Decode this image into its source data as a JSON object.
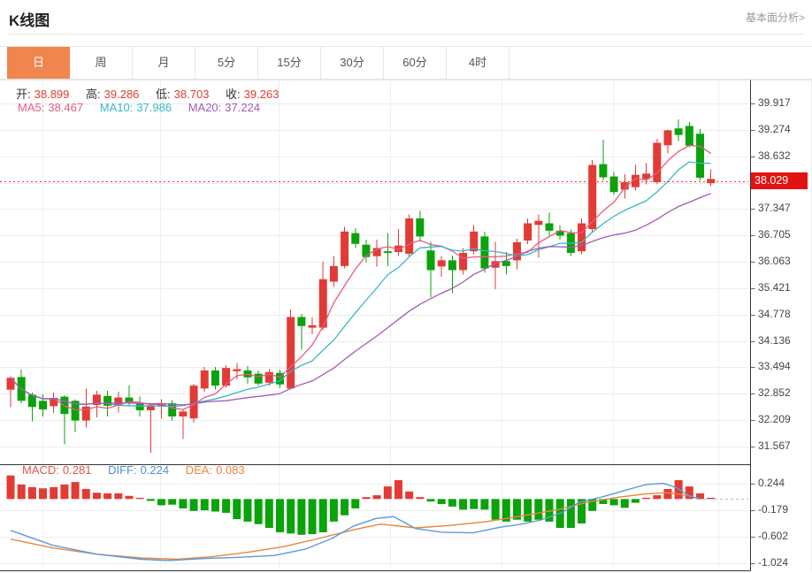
{
  "header": {
    "title": "K线图",
    "link": "基本面分析>"
  },
  "tabs": {
    "active_index": 0,
    "items": [
      {
        "label": "日",
        "name": "tab-day"
      },
      {
        "label": "周",
        "name": "tab-week"
      },
      {
        "label": "月",
        "name": "tab-month"
      },
      {
        "label": "5分",
        "name": "tab-5min"
      },
      {
        "label": "15分",
        "name": "tab-15min"
      },
      {
        "label": "30分",
        "name": "tab-30min"
      },
      {
        "label": "60分",
        "name": "tab-60min"
      },
      {
        "label": "4时",
        "name": "tab-4hour"
      }
    ]
  },
  "ohlc_legend": {
    "open_label": "开:",
    "open": "38.899",
    "high_label": "高:",
    "high": "39.286",
    "low_label": "低:",
    "low": "38.703",
    "close_label": "收:",
    "close": "39.263"
  },
  "ma_legend": {
    "ma5_label": "MA5:",
    "ma5": "38.467",
    "ma10_label": "MA10:",
    "ma10": "37.986",
    "ma20_label": "MA20:",
    "ma20": "37.224"
  },
  "macd_legend": {
    "macd_label": "MACD:",
    "macd": "0.281",
    "diff_label": "DIFF:",
    "diff": "0.224",
    "dea_label": "DEA:",
    "dea": "0.083"
  },
  "price_marker": {
    "value": "38.029"
  },
  "colors": {
    "up": "#e23b35",
    "down": "#0aa30a",
    "ma5": "#e85a82",
    "ma10": "#39b6c9",
    "ma20": "#a55ab4",
    "diff": "#5a9bd8",
    "dea": "#e8863c",
    "macd_text": "#e2544d",
    "diff_text": "#4a90d8",
    "dea_text": "#e8863c",
    "value_red": "#e23b35",
    "badge": "#e31212",
    "price_line": "#ff2d2d",
    "active_tab": "#f0854d",
    "zero_dash": "#9cc6e6"
  },
  "chart_data": {
    "type": "candlestick",
    "main": {
      "y_ticks": [
        39.917,
        39.274,
        38.632,
        37.99,
        37.347,
        36.705,
        36.063,
        35.421,
        34.778,
        34.136,
        33.494,
        32.852,
        32.209,
        31.567
      ],
      "current_price": 38.029,
      "ma_periods": [
        5,
        10,
        20
      ],
      "candles": [
        [
          32.95,
          33.28,
          32.52,
          33.24
        ],
        [
          33.26,
          33.44,
          32.62,
          32.68
        ],
        [
          32.83,
          32.88,
          32.18,
          32.53
        ],
        [
          32.68,
          32.84,
          32.3,
          32.47
        ],
        [
          32.55,
          32.88,
          32.38,
          32.75
        ],
        [
          32.78,
          32.82,
          31.62,
          32.36
        ],
        [
          32.68,
          32.72,
          31.92,
          32.2
        ],
        [
          32.2,
          32.98,
          32.03,
          32.54
        ],
        [
          32.58,
          32.92,
          32.28,
          32.83
        ],
        [
          32.8,
          32.92,
          32.3,
          32.56
        ],
        [
          32.56,
          32.9,
          32.4,
          32.76
        ],
        [
          32.76,
          33.05,
          32.55,
          32.62
        ],
        [
          32.62,
          32.78,
          32.3,
          32.45
        ],
        [
          32.45,
          32.62,
          31.42,
          32.55
        ],
        [
          32.55,
          32.72,
          32.25,
          32.62
        ],
        [
          32.62,
          32.7,
          32.2,
          32.3
        ],
        [
          32.3,
          32.48,
          31.75,
          32.42
        ],
        [
          32.25,
          33.1,
          32.15,
          33.05
        ],
        [
          32.98,
          33.5,
          32.9,
          33.42
        ],
        [
          33.42,
          33.5,
          32.95,
          33.05
        ],
        [
          33.05,
          33.55,
          33.0,
          33.48
        ],
        [
          33.4,
          33.6,
          33.2,
          33.45
        ],
        [
          33.42,
          33.52,
          33.1,
          33.25
        ],
        [
          33.34,
          33.42,
          33.05,
          33.1
        ],
        [
          33.12,
          33.45,
          33.05,
          33.38
        ],
        [
          33.36,
          33.44,
          33.0,
          33.08
        ],
        [
          32.98,
          34.9,
          32.95,
          34.72
        ],
        [
          34.72,
          34.8,
          33.92,
          34.5
        ],
        [
          34.46,
          34.72,
          34.3,
          34.52
        ],
        [
          34.46,
          36.06,
          34.4,
          35.64
        ],
        [
          35.58,
          36.2,
          35.45,
          35.96
        ],
        [
          35.96,
          36.92,
          35.9,
          36.8
        ],
        [
          36.76,
          36.88,
          36.4,
          36.5
        ],
        [
          36.48,
          36.6,
          36.05,
          36.18
        ],
        [
          36.2,
          36.6,
          35.95,
          36.4
        ],
        [
          36.32,
          36.76,
          35.96,
          36.28
        ],
        [
          36.3,
          36.86,
          36.2,
          36.46
        ],
        [
          36.26,
          37.22,
          36.18,
          37.12
        ],
        [
          37.12,
          37.3,
          36.55,
          36.68
        ],
        [
          36.34,
          36.55,
          35.2,
          35.86
        ],
        [
          35.95,
          36.2,
          35.7,
          36.1
        ],
        [
          36.1,
          36.22,
          35.3,
          35.86
        ],
        [
          35.86,
          36.4,
          35.75,
          36.28
        ],
        [
          36.32,
          36.96,
          36.25,
          36.8
        ],
        [
          36.68,
          36.8,
          35.8,
          35.9
        ],
        [
          35.92,
          36.55,
          35.4,
          36.08
        ],
        [
          36.08,
          36.3,
          35.75,
          35.96
        ],
        [
          36.1,
          36.62,
          35.88,
          36.54
        ],
        [
          36.58,
          37.12,
          36.5,
          37.0
        ],
        [
          36.96,
          37.22,
          36.16,
          37.06
        ],
        [
          37.0,
          37.26,
          36.7,
          36.82
        ],
        [
          36.82,
          36.95,
          36.6,
          36.7
        ],
        [
          36.76,
          36.85,
          36.2,
          36.28
        ],
        [
          36.32,
          37.12,
          36.25,
          37.0
        ],
        [
          36.86,
          38.54,
          36.8,
          38.42
        ],
        [
          38.44,
          39.04,
          38.05,
          38.12
        ],
        [
          38.14,
          38.25,
          37.7,
          37.76
        ],
        [
          37.82,
          38.2,
          37.6,
          38.0
        ],
        [
          37.88,
          38.42,
          37.8,
          38.18
        ],
        [
          38.08,
          38.46,
          37.95,
          38.21
        ],
        [
          38.0,
          39.06,
          37.95,
          38.96
        ],
        [
          38.899,
          39.286,
          38.703,
          39.263
        ],
        [
          39.31,
          39.53,
          39.0,
          39.15
        ],
        [
          39.37,
          39.47,
          38.85,
          38.89
        ],
        [
          39.18,
          39.29,
          38.05,
          38.11
        ],
        [
          37.98,
          38.31,
          37.9,
          38.08
        ]
      ]
    },
    "macd": {
      "y_ticks": [
        0.244,
        -0.179,
        -0.602,
        -1.024
      ],
      "histogram": [
        0.375,
        0.23,
        0.19,
        0.17,
        0.19,
        0.23,
        0.27,
        0.16,
        0.1,
        0.09,
        0.09,
        0.05,
        0.02,
        -0.03,
        -0.1,
        -0.09,
        -0.15,
        -0.19,
        -0.18,
        -0.2,
        -0.22,
        -0.32,
        -0.36,
        -0.4,
        -0.46,
        -0.53,
        -0.55,
        -0.57,
        -0.56,
        -0.53,
        -0.36,
        -0.26,
        -0.15,
        0.03,
        0.06,
        0.2,
        0.3,
        0.12,
        0.03,
        -0.04,
        -0.08,
        -0.12,
        -0.17,
        -0.16,
        -0.17,
        -0.33,
        -0.36,
        -0.33,
        -0.36,
        -0.33,
        -0.36,
        -0.46,
        -0.46,
        -0.39,
        -0.19,
        -0.08,
        -0.1,
        -0.14,
        -0.06,
        0.02,
        0.06,
        0.16,
        0.3,
        0.2,
        0.09,
        0.02
      ],
      "diff_points": [
        [
          12,
          -0.5
        ],
        [
          60,
          -0.74
        ],
        [
          110,
          -0.88
        ],
        [
          160,
          -0.96
        ],
        [
          190,
          -0.98
        ],
        [
          230,
          -0.95
        ],
        [
          270,
          -0.93
        ],
        [
          310,
          -0.9
        ],
        [
          345,
          -0.8
        ],
        [
          375,
          -0.63
        ],
        [
          400,
          -0.43
        ],
        [
          425,
          -0.31
        ],
        [
          445,
          -0.28
        ],
        [
          470,
          -0.47
        ],
        [
          500,
          -0.53
        ],
        [
          535,
          -0.54
        ],
        [
          565,
          -0.45
        ],
        [
          590,
          -0.4
        ],
        [
          610,
          -0.34
        ],
        [
          635,
          -0.22
        ],
        [
          655,
          -0.05
        ],
        [
          680,
          0.03
        ],
        [
          705,
          0.13
        ],
        [
          730,
          0.23
        ],
        [
          750,
          0.25
        ],
        [
          765,
          0.18
        ],
        [
          778,
          0.06
        ],
        [
          790,
          0.0
        ]
      ],
      "dea_points": [
        [
          12,
          -0.64
        ],
        [
          60,
          -0.78
        ],
        [
          110,
          -0.88
        ],
        [
          160,
          -0.94
        ],
        [
          200,
          -0.96
        ],
        [
          240,
          -0.92
        ],
        [
          280,
          -0.85
        ],
        [
          320,
          -0.76
        ],
        [
          360,
          -0.63
        ],
        [
          400,
          -0.49
        ],
        [
          430,
          -0.4
        ],
        [
          470,
          -0.46
        ],
        [
          510,
          -0.42
        ],
        [
          550,
          -0.36
        ],
        [
          590,
          -0.27
        ],
        [
          630,
          -0.17
        ],
        [
          665,
          -0.05
        ],
        [
          700,
          0.03
        ],
        [
          730,
          0.08
        ],
        [
          755,
          0.1
        ],
        [
          775,
          0.06
        ],
        [
          790,
          0.01
        ]
      ]
    },
    "grid": {
      "x_gridlines": [
        48,
        181,
        315,
        441,
        567,
        693,
        812
      ]
    }
  }
}
